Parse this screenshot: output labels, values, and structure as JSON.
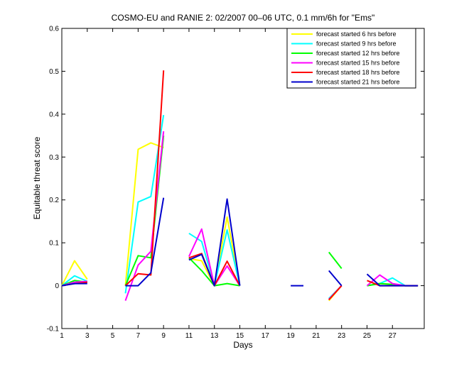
{
  "chart_data": {
    "type": "line",
    "title": "COSMO-EU and RANIE 2: 02/2007 00–06 UTC, 0.1 mm/6h for \"Ems\"",
    "xlabel": "Days",
    "ylabel": "Equitable threat score",
    "xlim": [
      1,
      29.5
    ],
    "ylim": [
      -0.1,
      0.6
    ],
    "xticks": [
      1,
      3,
      5,
      7,
      9,
      11,
      13,
      15,
      17,
      19,
      21,
      23,
      25,
      27
    ],
    "yticks": [
      -0.1,
      0,
      0.1,
      0.2,
      0.3,
      0.4,
      0.5,
      0.6
    ],
    "ytick_labels": [
      "-0.1",
      "0",
      "0.1",
      "0.2",
      "0.3",
      "0.4",
      "0.5",
      "0.6"
    ],
    "grid": false,
    "legend_position": "top-right",
    "series": [
      {
        "name": "forecast started 6 hrs before",
        "color": "#ffff00",
        "points": [
          [
            1,
            0.0
          ],
          [
            2,
            0.058
          ],
          [
            3,
            0.015
          ],
          null,
          [
            6,
            0.0
          ],
          [
            7,
            0.318
          ],
          [
            8,
            0.333
          ],
          [
            9,
            0.322
          ],
          null,
          [
            11,
            0.063
          ],
          [
            12,
            0.058
          ],
          [
            13,
            0.0
          ],
          [
            14,
            0.16
          ],
          [
            15,
            0.0
          ],
          null,
          [
            22,
            -0.035
          ],
          [
            23,
            0.0
          ],
          null,
          [
            25,
            0.0
          ],
          [
            26,
            0.005
          ],
          [
            27,
            0.003
          ],
          [
            28,
            0.0
          ],
          [
            29,
            0.0
          ]
        ]
      },
      {
        "name": "forecast started 9 hrs before",
        "color": "#00ffff",
        "points": [
          [
            1,
            0.0
          ],
          [
            2,
            0.023
          ],
          [
            3,
            0.01
          ],
          null,
          [
            6,
            -0.018
          ],
          [
            7,
            0.195
          ],
          [
            8,
            0.208
          ],
          [
            9,
            0.398
          ],
          null,
          [
            11,
            0.122
          ],
          [
            12,
            0.103
          ],
          [
            13,
            0.0
          ],
          [
            14,
            0.13
          ],
          [
            15,
            0.0
          ],
          null,
          [
            22,
            -0.03
          ],
          [
            23,
            0.0
          ],
          null,
          [
            25,
            0.0
          ],
          [
            26,
            0.005
          ],
          [
            27,
            0.018
          ],
          [
            28,
            0.0
          ],
          [
            29,
            0.0
          ]
        ]
      },
      {
        "name": "forecast started 12 hrs before",
        "color": "#00ff00",
        "points": [
          [
            1,
            0.0
          ],
          [
            2,
            0.012
          ],
          [
            3,
            0.008
          ],
          null,
          [
            6,
            0.0
          ],
          [
            7,
            0.07
          ],
          [
            8,
            0.065
          ],
          [
            9,
            0.35
          ],
          null,
          [
            11,
            0.065
          ],
          [
            12,
            0.035
          ],
          [
            13,
            0.0
          ],
          [
            14,
            0.005
          ],
          [
            15,
            0.0
          ],
          null,
          [
            22,
            0.078
          ],
          [
            23,
            0.04
          ],
          null,
          [
            25,
            0.0
          ],
          [
            26,
            0.005
          ],
          [
            27,
            0.003
          ],
          [
            28,
            0.0
          ],
          [
            29,
            0.0
          ]
        ]
      },
      {
        "name": "forecast started 15 hrs before",
        "color": "#ff00ff",
        "points": [
          [
            1,
            0.0
          ],
          [
            2,
            0.008
          ],
          [
            3,
            0.01
          ],
          null,
          [
            6,
            -0.035
          ],
          [
            7,
            0.048
          ],
          [
            8,
            0.08
          ],
          [
            9,
            0.36
          ],
          null,
          [
            11,
            0.068
          ],
          [
            12,
            0.132
          ],
          [
            13,
            0.0
          ],
          [
            14,
            0.046
          ],
          [
            15,
            0.0
          ],
          null,
          [
            22,
            -0.032
          ],
          [
            23,
            0.0
          ],
          null,
          [
            25,
            0.0
          ],
          [
            26,
            0.025
          ],
          [
            27,
            0.005
          ],
          [
            28,
            0.0
          ],
          [
            29,
            0.0
          ]
        ]
      },
      {
        "name": "forecast started 18 hrs before",
        "color": "#ff0000",
        "points": [
          [
            1,
            0.0
          ],
          [
            2,
            0.005
          ],
          [
            3,
            0.008
          ],
          null,
          [
            6,
            0.0
          ],
          [
            7,
            0.028
          ],
          [
            8,
            0.025
          ],
          [
            9,
            0.502
          ],
          null,
          [
            11,
            0.065
          ],
          [
            12,
            0.075
          ],
          [
            13,
            0.0
          ],
          [
            14,
            0.057
          ],
          [
            15,
            0.0
          ],
          null,
          [
            22,
            -0.033
          ],
          [
            23,
            0.0
          ],
          null,
          [
            25,
            0.012
          ],
          [
            26,
            0.0
          ],
          [
            27,
            0.0
          ],
          [
            28,
            0.0
          ],
          [
            29,
            0.0
          ]
        ]
      },
      {
        "name": "forecast started 21 hrs before",
        "color": "#0000cc",
        "points": [
          [
            1,
            0.0
          ],
          [
            2,
            0.005
          ],
          [
            3,
            0.005
          ],
          null,
          [
            6,
            0.0
          ],
          [
            7,
            0.0
          ],
          [
            8,
            0.03
          ],
          [
            9,
            0.205
          ],
          null,
          [
            11,
            0.06
          ],
          [
            12,
            0.073
          ],
          [
            13,
            0.0
          ],
          [
            14,
            0.202
          ],
          [
            15,
            0.0
          ],
          null,
          [
            19,
            0.0
          ],
          [
            20,
            0.0
          ],
          null,
          [
            22,
            0.035
          ],
          [
            23,
            0.0
          ],
          null,
          [
            25,
            0.027
          ],
          [
            26,
            0.0
          ],
          [
            27,
            0.0
          ],
          [
            28,
            0.0
          ],
          [
            29,
            0.0
          ]
        ]
      }
    ]
  }
}
